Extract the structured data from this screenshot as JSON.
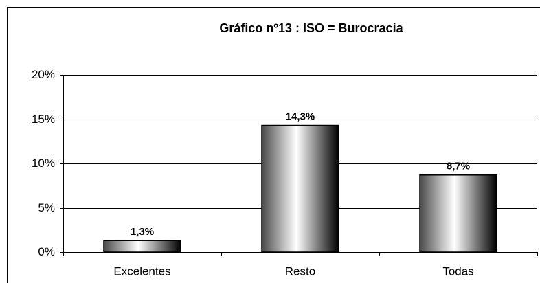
{
  "chart_data": {
    "type": "bar",
    "title": "Gráfico nº13 : ISO = Burocracia",
    "categories": [
      "Excelentes",
      "Resto",
      "Todas"
    ],
    "values": [
      1.3,
      14.3,
      8.7
    ],
    "value_labels": [
      "1,3%",
      "14,3%",
      "8,7%"
    ],
    "ylim": [
      0,
      20
    ],
    "yticks": [
      {
        "value": 0,
        "label": "0%"
      },
      {
        "value": 5,
        "label": "5%"
      },
      {
        "value": 10,
        "label": "10%"
      },
      {
        "value": 15,
        "label": "15%"
      },
      {
        "value": 20,
        "label": "20%"
      }
    ],
    "grid": true
  }
}
